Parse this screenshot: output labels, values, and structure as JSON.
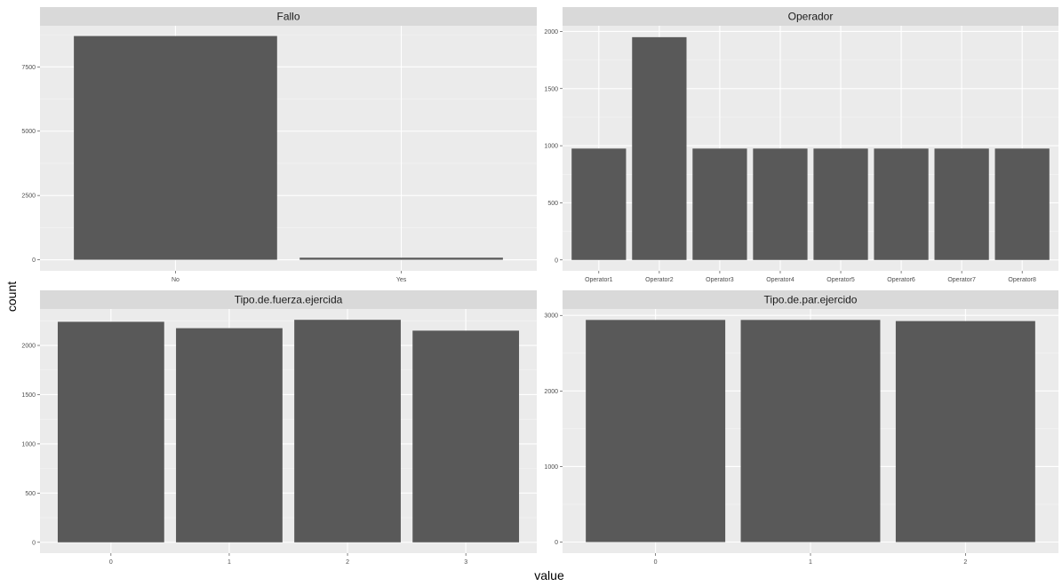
{
  "chart_data": {
    "type": "bar",
    "xlabel": "value",
    "ylabel": "count",
    "colors": {
      "bar": "#595959",
      "panel_background": "#ebebeb",
      "strip_background": "#d9d9d9",
      "grid_major": "#ffffff",
      "grid_minor": "#f5f5f5"
    },
    "grid": true,
    "facets": [
      {
        "title": "Fallo",
        "categories": [
          "No",
          "Yes"
        ],
        "values": [
          8700,
          80
        ],
        "ylim": [
          -430,
          9100
        ],
        "y_ticks": [
          0,
          2500,
          5000,
          7500
        ],
        "y_tick_labels": [
          "0",
          "2500",
          "5000",
          "7500"
        ]
      },
      {
        "title": "Operador",
        "categories": [
          "Operator1",
          "Operator2",
          "Operator3",
          "Operator4",
          "Operator5",
          "Operator6",
          "Operator7",
          "Operator8"
        ],
        "values": [
          975,
          1950,
          975,
          975,
          975,
          975,
          975,
          975
        ],
        "ylim": [
          -95,
          2050
        ],
        "y_ticks": [
          0,
          500,
          1000,
          1500,
          2000
        ],
        "y_tick_labels": [
          "0",
          "500",
          "1000",
          "1500",
          "2000"
        ]
      },
      {
        "title": "Tipo.de.fuerza.ejercida",
        "categories": [
          "0",
          "1",
          "2",
          "3"
        ],
        "values": [
          2240,
          2175,
          2260,
          2150
        ],
        "ylim": [
          -110,
          2370
        ],
        "y_ticks": [
          0,
          500,
          1000,
          1500,
          2000
        ],
        "y_tick_labels": [
          "0",
          "500",
          "1000",
          "1500",
          "2000"
        ]
      },
      {
        "title": "Tipo.de.par.ejercido",
        "categories": [
          "0",
          "1",
          "2"
        ],
        "values": [
          2940,
          2940,
          2925
        ],
        "ylim": [
          -147,
          3085
        ],
        "y_ticks": [
          0,
          1000,
          2000,
          3000
        ],
        "y_tick_labels": [
          "0",
          "1000",
          "2000",
          "3000"
        ]
      }
    ]
  }
}
